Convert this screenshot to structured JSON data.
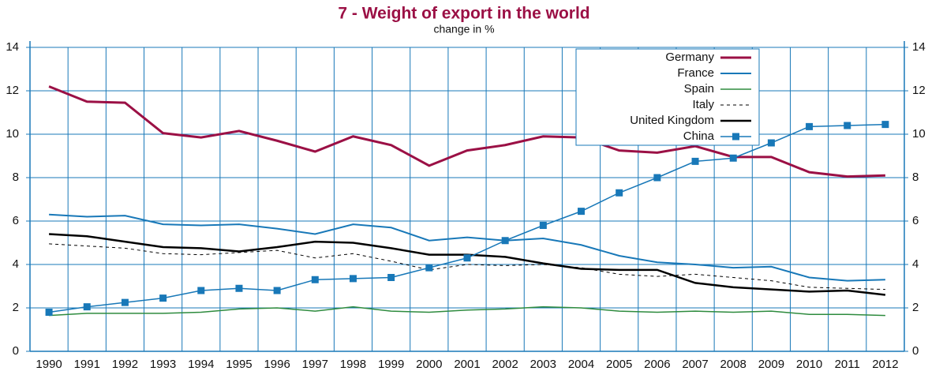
{
  "chart_data": {
    "type": "line",
    "title": "7 - Weight of export in the world",
    "subtitle": "change in %",
    "categories": [
      "1990",
      "1991",
      "1992",
      "1993",
      "1994",
      "1995",
      "1996",
      "1997",
      "1998",
      "1999",
      "2000",
      "2001",
      "2002",
      "2003",
      "2004",
      "2005",
      "2006",
      "2007",
      "2008",
      "2009",
      "2010",
      "2011",
      "2012"
    ],
    "ylim": [
      0,
      14
    ],
    "yticks": [
      0,
      2,
      4,
      6,
      8,
      10,
      12,
      14
    ],
    "grid": true,
    "grid_color": "#1878b8",
    "legend": "top right",
    "series": [
      {
        "name": "Germany",
        "color": "#9b1045",
        "width": 3,
        "values": [
          12.2,
          11.5,
          11.45,
          10.05,
          9.85,
          10.15,
          9.7,
          9.2,
          9.9,
          9.5,
          8.55,
          9.25,
          9.5,
          9.9,
          9.85,
          9.25,
          9.15,
          9.45,
          8.95,
          8.95,
          8.25,
          8.05,
          8.1
        ]
      },
      {
        "name": "France",
        "color": "#1878b8",
        "width": 2,
        "values": [
          6.3,
          6.2,
          6.25,
          5.85,
          5.8,
          5.85,
          5.65,
          5.4,
          5.85,
          5.7,
          5.1,
          5.25,
          5.1,
          5.2,
          4.9,
          4.4,
          4.1,
          4.0,
          3.85,
          3.9,
          3.4,
          3.25,
          3.3
        ]
      },
      {
        "name": "Spain",
        "color": "#2e8b3e",
        "width": 1.5,
        "values": [
          1.65,
          1.75,
          1.75,
          1.75,
          1.8,
          1.95,
          2.0,
          1.85,
          2.05,
          1.85,
          1.8,
          1.9,
          1.95,
          2.05,
          2.0,
          1.85,
          1.8,
          1.85,
          1.8,
          1.85,
          1.7,
          1.7,
          1.65
        ]
      },
      {
        "name": "Italy",
        "color": "#000000",
        "width": 1,
        "dashed": true,
        "values": [
          4.95,
          4.85,
          4.75,
          4.5,
          4.45,
          4.55,
          4.65,
          4.3,
          4.5,
          4.15,
          3.75,
          4.0,
          3.95,
          4.0,
          3.85,
          3.55,
          3.45,
          3.55,
          3.4,
          3.25,
          2.95,
          2.9,
          2.85
        ]
      },
      {
        "name": "United Kingdom",
        "color": "#000000",
        "width": 2.5,
        "values": [
          5.4,
          5.3,
          5.05,
          4.8,
          4.75,
          4.6,
          4.8,
          5.05,
          5.0,
          4.75,
          4.45,
          4.45,
          4.35,
          4.05,
          3.8,
          3.75,
          3.75,
          3.15,
          2.95,
          2.85,
          2.75,
          2.8,
          2.6
        ]
      },
      {
        "name": "China",
        "color": "#1878b8",
        "width": 1.5,
        "marker": "square",
        "values": [
          1.8,
          2.05,
          2.25,
          2.45,
          2.8,
          2.9,
          2.8,
          3.3,
          3.35,
          3.4,
          3.85,
          4.3,
          5.1,
          5.8,
          6.45,
          7.3,
          8.0,
          8.75,
          8.9,
          9.6,
          10.35,
          10.4,
          10.45
        ]
      }
    ]
  }
}
